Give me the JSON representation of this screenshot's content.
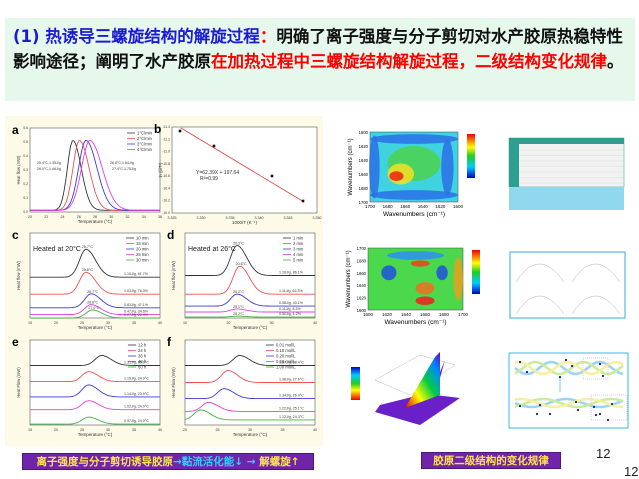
{
  "header": {
    "blue": "(1) 热诱导三螺旋结构的解旋过程",
    "colon": "：",
    "black1": "明确了离子强度与分子剪切对水产胶原热稳特性影响途径；阐明了水产胶原",
    "red": "在加热过程中三螺旋结构解旋过程，二级结构变化规律",
    "end": "。"
  },
  "panels": {
    "a": {
      "label": "a",
      "ylabel": "Heat flow (mW)",
      "xlabel": "Temperature (°C)",
      "xticks": [
        "20",
        "22",
        "24",
        "26",
        "28",
        "30",
        "32",
        "34",
        "36"
      ],
      "yticks": [
        "0.0",
        "0.1",
        "0.2",
        "0.3",
        "0.4",
        "0.5",
        "0.6"
      ],
      "legend": [
        "1°C/min",
        "2°C/min",
        "3°C/min",
        "4°C/min"
      ],
      "annotations": [
        "25.4°C,1.35J/g",
        "26.0°C,1.46J/g",
        "26.8°C,1.54J/g",
        "27.4°C,1.75J/g"
      ]
    },
    "b": {
      "label": "b",
      "ylabel": "ln (β/T²)",
      "xlabel": "1000/T (K⁻¹)",
      "xticks": [
        "3.325",
        "3.330",
        "3.335",
        "3.340",
        "3.345",
        "3.350"
      ],
      "yticks": [
        "-10.0",
        "-10.2",
        "-10.4",
        "-10.6",
        "-10.8",
        "-11.0",
        "-11.2",
        "-11.4"
      ],
      "equation": "Y=62.39X + 197.64",
      "r2": "R²=0.99"
    },
    "c": {
      "label": "c",
      "title": "Heated at 20°C",
      "ylabel": "Heat flow (mW)",
      "xlabel": "Temperature (°C)",
      "xticks": [
        "15",
        "20",
        "25",
        "30",
        "35",
        "40"
      ],
      "legend": [
        "10 min",
        "15 min",
        "20 min",
        "25 min",
        "30 min"
      ],
      "peaks": [
        "25.7°C",
        "25.8°C",
        "26.7°C",
        "26.8°C",
        "27.0°C"
      ],
      "annotations": [
        "1.10J/g, 61.7%",
        "1.03J/g, 76.3%",
        "0.83J/g, 47.1%",
        "0.47J/g, 34.6%",
        "0.27J/g, 20.4%"
      ]
    },
    "d": {
      "label": "d",
      "title": "Heated at 26°C",
      "ylabel": "Heat flow (mW)",
      "xlabel": "Temperature (°C)",
      "xticks": [
        "10",
        "20",
        "30",
        "40"
      ],
      "legend": [
        "1 min",
        "2 min",
        "3 min",
        "4 min",
        "5 min"
      ],
      "peaks": [
        "20.3°C",
        "20.6°C",
        "25.2°C",
        "25.1°C",
        "25.2°C"
      ],
      "annotations": [
        "1.16J/g, 86.1%",
        "1.11J/g, 62.3%",
        "0.58J/g, 43.1%",
        "0.11J/g, 8.3%",
        "0.50J/g, 1.2%"
      ]
    },
    "e": {
      "label": "e",
      "ylabel": "Heat Flow (mW)",
      "xlabel": "Temperature (°C)",
      "xticks": [
        "15",
        "20",
        "25",
        "30",
        "35",
        "40"
      ],
      "legend": [
        "12 h",
        "24 h",
        "36 h",
        "48 h",
        "60 h"
      ],
      "annotations": [
        "1.31J/g, 25.9°C",
        "1.19J/g, 24.0°C",
        "1.14J/g, 23.9°C",
        "1.02J/g, 24.0°C",
        "0.97J/g, 24.0°C"
      ]
    },
    "f": {
      "label": "f",
      "ylabel": "Heat Flow (mW)",
      "xlabel": "Temperature (°C)",
      "xticks": [
        "20",
        "25",
        "30",
        "35",
        "40"
      ],
      "legend": [
        "0.01 mol/L",
        "0.10 mol/L",
        "0.20 mol/L",
        "0.50 mol/L",
        "1.00 mol/L"
      ],
      "annotations": [
        "1.37J/g, 28.4°C",
        "1.36J/g, 27.6°C",
        "1.34J/g, 26.9°C",
        "1.22J/g, 25.1°C",
        "1.12J/g, 24.3°C"
      ]
    }
  },
  "right": {
    "map1": {
      "ylabel": "Wavenumbers (cm⁻¹)",
      "xlabel": "Wavenumbers (cm⁻¹)",
      "xticks": [
        "1700",
        "1680",
        "1660",
        "1640",
        "1620",
        "1600"
      ],
      "yticks": [
        "1600",
        "1620",
        "1640",
        "1660",
        "1680",
        "1700"
      ]
    },
    "map2": {
      "ylabel": "Wavenumbers (cm⁻¹)",
      "xlabel": "Wavenumbers (cm⁻¹)",
      "xticks": [
        "1600",
        "1620",
        "1640",
        "1660",
        "1680",
        "1700"
      ],
      "yticks": [
        "1700",
        "1680",
        "1660",
        "1640",
        "1620",
        "1600"
      ]
    }
  },
  "colors": {
    "series": [
      "#333333",
      "#f05050",
      "#3a3ad8",
      "#e040e0",
      "#40b040"
    ],
    "badge_bg": "#7025a8",
    "badge_text": "#ffe54a"
  },
  "footer": {
    "badge_left_1": "离子强度与分子剪切诱导胶原",
    "badge_left_2": "→黏流活化能↓ → ",
    "badge_left_3": "解螺旋↑",
    "badge_right": "胶原二级结构的变化规律",
    "page_num_1": "12",
    "page_num_2": "12"
  }
}
